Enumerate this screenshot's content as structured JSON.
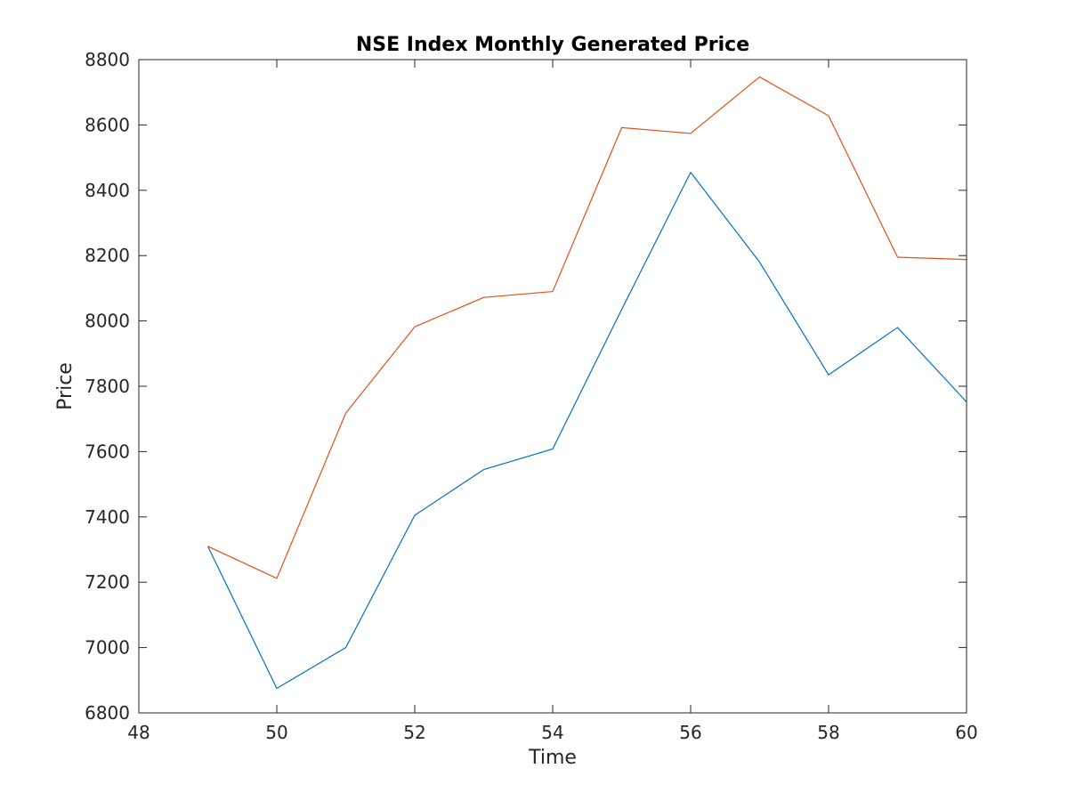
{
  "chart_data": {
    "type": "line",
    "title": "NSE Index Monthly Generated Price",
    "xlabel": "Time",
    "ylabel": "Price",
    "xlim": [
      48,
      60
    ],
    "ylim": [
      6800,
      8800
    ],
    "xticks": [
      48,
      50,
      52,
      54,
      56,
      58,
      60
    ],
    "yticks": [
      6800,
      7000,
      7200,
      7400,
      7600,
      7800,
      8000,
      8200,
      8400,
      8600,
      8800
    ],
    "grid": false,
    "legend": "none",
    "x": [
      49,
      50,
      51,
      52,
      53,
      54,
      55,
      56,
      57,
      58,
      59,
      60
    ],
    "series": [
      {
        "color": "#0072BD",
        "values": [
          7310,
          6875,
          7000,
          7405,
          7545,
          7608,
          8035,
          8455,
          8180,
          7835,
          7980,
          7752
        ]
      },
      {
        "color": "#D95319",
        "values": [
          7310,
          7212,
          7718,
          7982,
          8072,
          8090,
          8592,
          8574,
          8747,
          8628,
          8195,
          8188
        ]
      }
    ]
  }
}
